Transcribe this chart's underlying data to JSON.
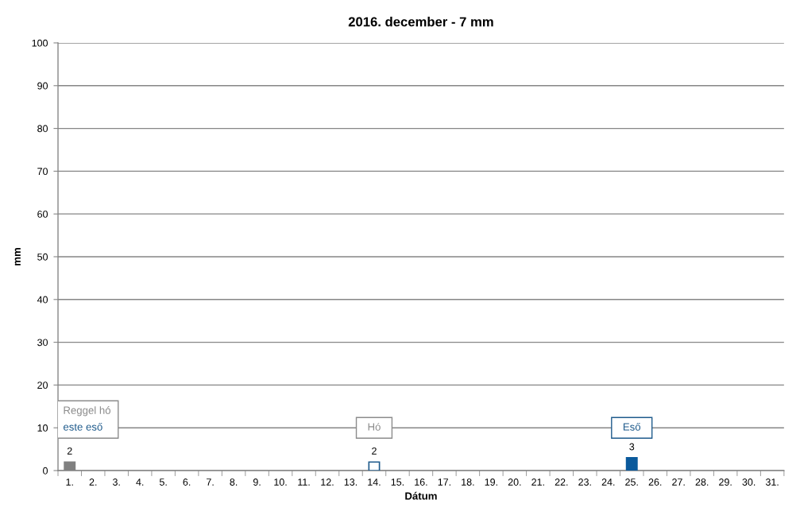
{
  "chart_data": {
    "type": "bar",
    "title": "2016. december - 7 mm",
    "xlabel": "Dátum",
    "ylabel": "mm",
    "categories": [
      "1.",
      "2.",
      "3.",
      "4.",
      "5.",
      "6.",
      "7.",
      "8.",
      "9.",
      "10.",
      "11.",
      "12.",
      "13.",
      "14.",
      "15.",
      "16.",
      "17.",
      "18.",
      "19.",
      "20.",
      "21.",
      "22.",
      "23.",
      "24.",
      "25.",
      "26.",
      "27.",
      "28.",
      "29.",
      "30.",
      "31."
    ],
    "series": [
      {
        "color": "#1f5b8c",
        "colors": [
          "#808080",
          null,
          null,
          null,
          null,
          null,
          null,
          null,
          null,
          null,
          null,
          null,
          null,
          "#ffffff",
          null,
          null,
          null,
          null,
          null,
          null,
          null,
          null,
          null,
          null,
          "#0b5a9c",
          null,
          null,
          null,
          null,
          null,
          null
        ],
        "values": [
          2,
          null,
          null,
          null,
          null,
          null,
          null,
          null,
          null,
          null,
          null,
          null,
          null,
          2,
          null,
          null,
          null,
          null,
          null,
          null,
          null,
          null,
          null,
          null,
          3,
          null,
          null,
          null,
          null,
          null,
          null
        ],
        "value_labels": [
          "2",
          null,
          null,
          null,
          null,
          null,
          null,
          null,
          null,
          null,
          null,
          null,
          null,
          "2",
          null,
          null,
          null,
          null,
          null,
          null,
          null,
          null,
          null,
          null,
          "3",
          null,
          null,
          null,
          null,
          null,
          null
        ]
      }
    ],
    "ylim": [
      0,
      100
    ],
    "yticks": [
      0,
      10,
      20,
      30,
      40,
      50,
      60,
      70,
      80,
      90,
      100
    ],
    "grid": "y",
    "annotations": [
      "Reggel hó\neste eső",
      "Hó",
      "Eső"
    ]
  }
}
